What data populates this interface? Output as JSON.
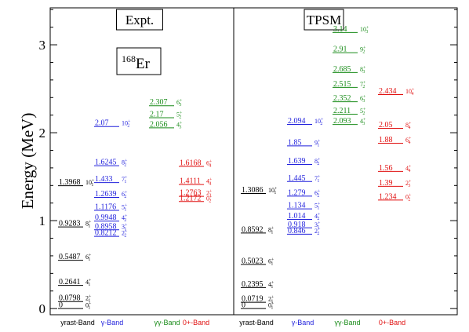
{
  "chart_data": {
    "type": "level-scheme",
    "ylabel": "Energy (MeV)",
    "ylim": [
      -0.07,
      3.42
    ],
    "yticks": [
      0,
      1,
      2,
      3
    ],
    "nucleus": {
      "mass": "168",
      "symbol": "Er"
    },
    "colors": {
      "yrast": "#000000",
      "gamma": "#1f1fdc",
      "gammagamma": "#1a8c1a",
      "zero": "#e01010"
    },
    "panels": [
      {
        "title": "Expt.",
        "band_labels": [
          "yrast-Band",
          "γ-Band",
          "γγ-Band",
          "0+-Band"
        ],
        "bands": [
          {
            "key": "yrast",
            "levels": [
              {
                "label": "0",
                "E": 0,
                "spin": "0+1"
              },
              {
                "label": "0.0798",
                "E": 0.0798,
                "spin": "2+1"
              },
              {
                "label": "0.2641",
                "E": 0.2641,
                "spin": "4+1"
              },
              {
                "label": "0.5487",
                "E": 0.5487,
                "spin": "6+1"
              },
              {
                "label": "0.9283",
                "E": 0.9283,
                "spin": "8+1"
              },
              {
                "label": "1.3968",
                "E": 1.3968,
                "spin": "10+1"
              }
            ]
          },
          {
            "key": "gamma",
            "levels": [
              {
                "label": "0.8212",
                "E": 0.8212,
                "spin": "2+2"
              },
              {
                "label": "0.8958",
                "E": 0.8958,
                "spin": "3+1"
              },
              {
                "label": "0.9948",
                "E": 0.9948,
                "spin": "4+2"
              },
              {
                "label": "1.1176",
                "E": 1.1176,
                "spin": "5+1"
              },
              {
                "label": "1.2639",
                "E": 1.2639,
                "spin": "6+2"
              },
              {
                "label": "1.433",
                "E": 1.433,
                "spin": "7+1"
              },
              {
                "label": "1.6245",
                "E": 1.6245,
                "spin": "8+2"
              },
              {
                "label": "2.07",
                "E": 2.07,
                "spin": "10+2"
              }
            ]
          },
          {
            "key": "gammagamma",
            "levels": [
              {
                "label": "2.056",
                "E": 2.056,
                "spin": "4+3"
              },
              {
                "label": "2.17",
                "E": 2.17,
                "spin": "5+2"
              },
              {
                "label": "2.307",
                "E": 2.307,
                "spin": "6+3"
              }
            ]
          },
          {
            "key": "zero",
            "levels": [
              {
                "label": "1.2172",
                "E": 1.2172,
                "spin": "0+2"
              },
              {
                "label": "1.2763",
                "E": 1.2763,
                "spin": "2+3"
              },
              {
                "label": "1.4111",
                "E": 1.4111,
                "spin": "4+4"
              },
              {
                "label": "1.6168",
                "E": 1.6168,
                "spin": "6+4"
              }
            ]
          }
        ]
      },
      {
        "title": "TPSM",
        "band_labels": [
          "yrast-Band",
          "γ-Band",
          "γγ-Band",
          "0+-Band"
        ],
        "bands": [
          {
            "key": "yrast",
            "levels": [
              {
                "label": "0",
                "E": 0,
                "spin": "0+1"
              },
              {
                "label": "0.0719",
                "E": 0.0719,
                "spin": "2+1"
              },
              {
                "label": "0.2395",
                "E": 0.2395,
                "spin": "4+1"
              },
              {
                "label": "0.5023",
                "E": 0.5023,
                "spin": "6+1"
              },
              {
                "label": "0.8592",
                "E": 0.8592,
                "spin": "8+1"
              },
              {
                "label": "1.3086",
                "E": 1.3086,
                "spin": "10+1"
              }
            ]
          },
          {
            "key": "gamma",
            "levels": [
              {
                "label": "0.846",
                "E": 0.846,
                "spin": "2+2"
              },
              {
                "label": "0.918",
                "E": 0.918,
                "spin": "3+1"
              },
              {
                "label": "1.014",
                "E": 1.014,
                "spin": "4+2"
              },
              {
                "label": "1.134",
                "E": 1.134,
                "spin": "5+1"
              },
              {
                "label": "1.279",
                "E": 1.279,
                "spin": "6+2"
              },
              {
                "label": "1.445",
                "E": 1.445,
                "spin": "7+1"
              },
              {
                "label": "1.639",
                "E": 1.639,
                "spin": "8+2"
              },
              {
                "label": "1.85",
                "E": 1.85,
                "spin": "9+1"
              },
              {
                "label": "2.094",
                "E": 2.094,
                "spin": "10+2"
              }
            ]
          },
          {
            "key": "gammagamma",
            "levels": [
              {
                "label": "2.093",
                "E": 2.093,
                "spin": "4+3"
              },
              {
                "label": "2.211",
                "E": 2.211,
                "spin": "5+2"
              },
              {
                "label": "2.352",
                "E": 2.352,
                "spin": "6+3"
              },
              {
                "label": "2.515",
                "E": 2.515,
                "spin": "7+2"
              },
              {
                "label": "2.685",
                "E": 2.685,
                "spin": "8+3"
              },
              {
                "label": "2.91",
                "E": 2.91,
                "spin": "9+2"
              },
              {
                "label": "3.14",
                "E": 3.14,
                "spin": "10+3"
              }
            ]
          },
          {
            "key": "zero",
            "levels": [
              {
                "label": "1.234",
                "E": 1.234,
                "spin": "0+2"
              },
              {
                "label": "1.39",
                "E": 1.39,
                "spin": "2+3"
              },
              {
                "label": "1.56",
                "E": 1.56,
                "spin": "4+4"
              },
              {
                "label": "1.88",
                "E": 1.88,
                "spin": "6+4"
              },
              {
                "label": "2.05",
                "E": 2.05,
                "spin": "8+4"
              },
              {
                "label": "2.434",
                "E": 2.434,
                "spin": "10+4"
              }
            ]
          }
        ]
      }
    ]
  }
}
